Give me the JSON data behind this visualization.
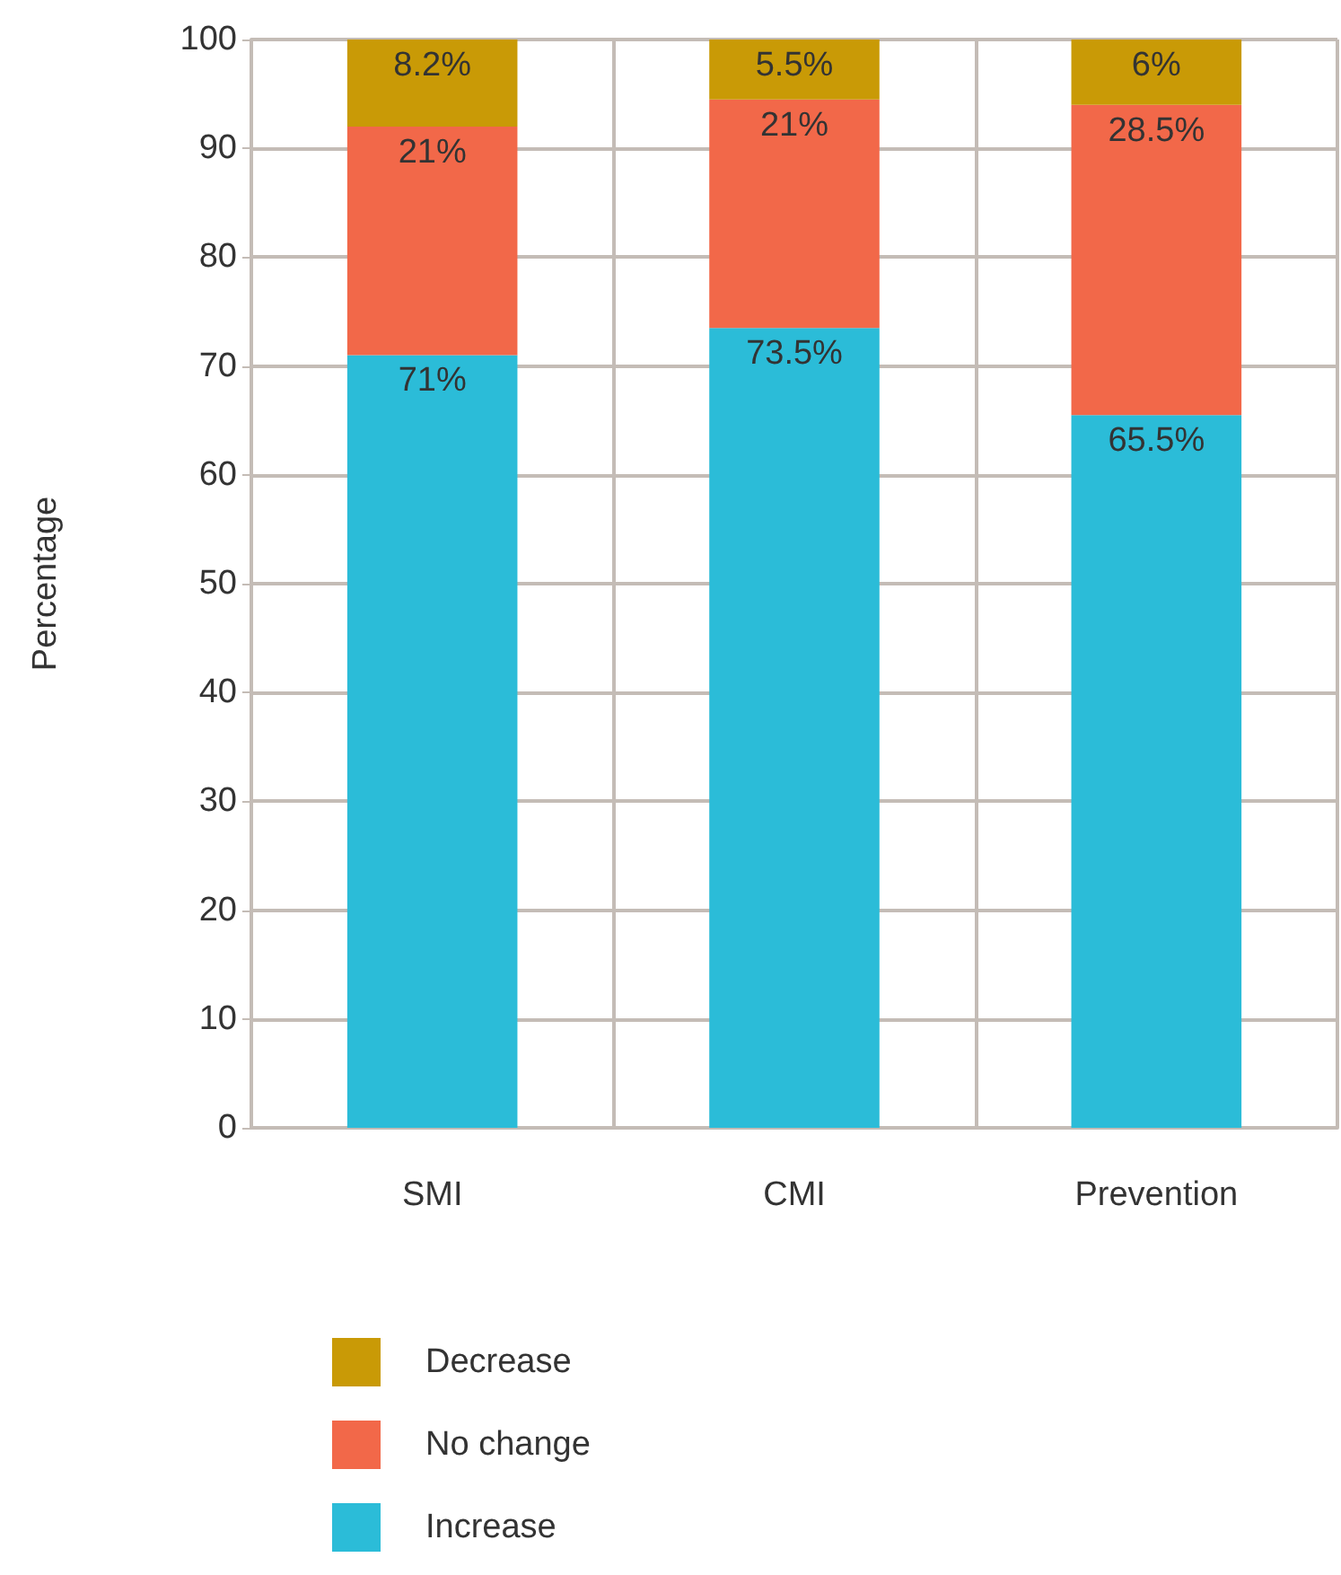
{
  "chart_data": {
    "type": "bar",
    "stacked": true,
    "ylabel": "Percentage",
    "categories": [
      "SMI",
      "CMI",
      "Prevention"
    ],
    "series": [
      {
        "name": "Increase",
        "color": "#2bbcd8",
        "values": [
          71,
          73.5,
          65.5
        ],
        "value_labels": [
          "71%",
          "73.5%",
          "65.5%"
        ]
      },
      {
        "name": "No change",
        "color": "#f26849",
        "values": [
          21,
          21,
          28.5
        ],
        "value_labels": [
          "21%",
          "21%",
          "28.5%"
        ]
      },
      {
        "name": "Decrease",
        "color": "#c99a06",
        "values": [
          8.2,
          5.5,
          6
        ],
        "value_labels": [
          "8.2%",
          "5.5%",
          "6%"
        ]
      }
    ],
    "ylim": [
      0,
      100
    ],
    "yticks": [
      0,
      10,
      20,
      30,
      40,
      50,
      60,
      70,
      80,
      90,
      100
    ],
    "grid": true,
    "legend": "bottom"
  }
}
